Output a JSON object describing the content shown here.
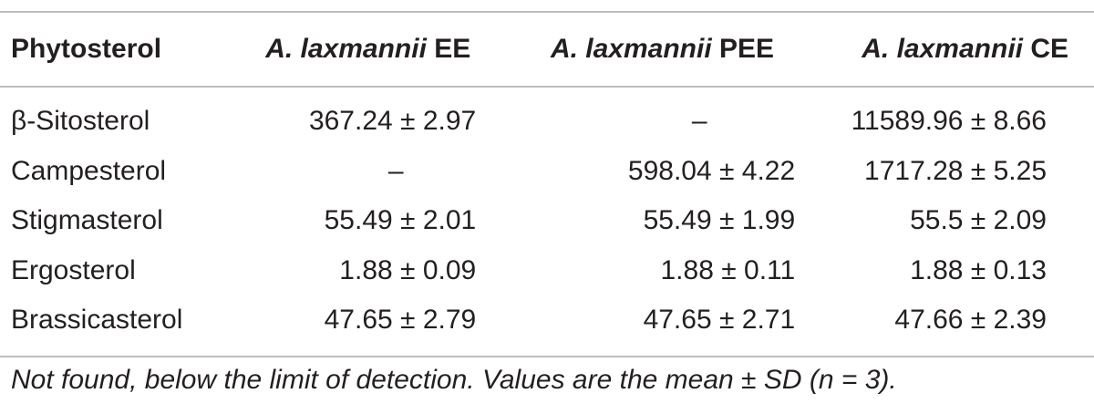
{
  "table": {
    "headers": [
      {
        "italic": "",
        "plain": "Phytosterol"
      },
      {
        "italic": "A. laxmannii",
        "plain": " EE"
      },
      {
        "italic": "A. laxmannii",
        "plain": " PEE"
      },
      {
        "italic": "A. laxmannii",
        "plain": " CE"
      }
    ],
    "rows": [
      {
        "name": "β-Sitosterol",
        "ee": "367.24 ± 2.97",
        "pee": "–",
        "ce": "11589.96 ± 8.66"
      },
      {
        "name": "Campesterol",
        "ee": "–",
        "pee": "598.04 ± 4.22",
        "ce": "1717.28 ± 5.25"
      },
      {
        "name": "Stigmasterol",
        "ee": "55.49 ± 2.01",
        "pee": "55.49 ± 1.99",
        "ce": "55.5 ± 2.09"
      },
      {
        "name": "Ergosterol",
        "ee": "1.88 ± 0.09",
        "pee": "1.88 ± 0.11",
        "ce": "1.88 ± 0.13"
      },
      {
        "name": "Brassicasterol",
        "ee": "47.65 ± 2.79",
        "pee": "47.65 ± 2.71",
        "ce": "47.66 ± 2.39"
      }
    ]
  },
  "footnote": "Not found, below the limit of detection. Values are the mean ± SD (n = 3)."
}
